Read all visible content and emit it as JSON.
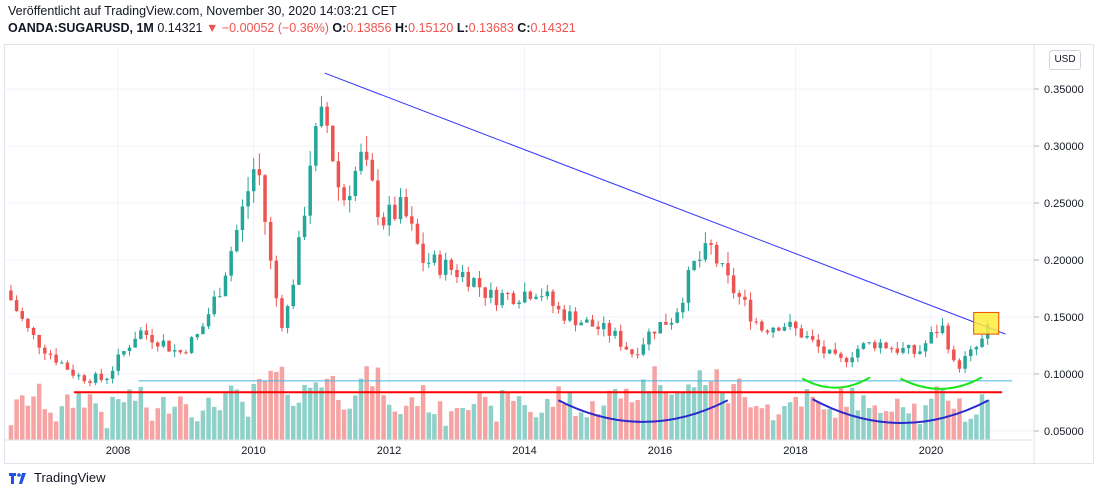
{
  "header": {
    "published_line": "Veröffentlicht auf TradingView.com, November 30, 2020 14:03:21 CET",
    "symbol": "OANDA:SUGARUSD, 1M",
    "last": "0.14321",
    "change": "−0.00052 (−0.36%)",
    "o_label": "O:",
    "o_value": "0.13856",
    "h_label": "H:",
    "h_value": "0.15120",
    "l_label": "L:",
    "l_value": "0.13683",
    "c_label": "C:",
    "c_value": "0.14321"
  },
  "axis_badge": "USD",
  "footer": {
    "brand": "TradingView"
  },
  "colors": {
    "up": "#26a69a",
    "down": "#ef5350",
    "volume_up": "#8fd1c9",
    "volume_down": "#f5a3a3",
    "trendline": "#3333ff",
    "support": "#ff0000",
    "volume_line": "#41b6e6",
    "arc_blue": "#2a2acd",
    "arc_green": "#19e619",
    "highlight_box": "#ffeb3b"
  },
  "chart_data": {
    "type": "candlestick",
    "title": "",
    "xlabel": "",
    "ylabel": "",
    "ylim": [
      0.045,
      0.38
    ],
    "x_ticks": [
      "2008",
      "2010",
      "2012",
      "2014",
      "2016",
      "2018",
      "2020"
    ],
    "y_ticks": [
      "0.35000",
      "0.30000",
      "0.25000",
      "0.20000",
      "0.15000",
      "0.10000",
      "0.05000"
    ],
    "y_tick_values": [
      0.35,
      0.3,
      0.25,
      0.2,
      0.15,
      0.1,
      0.05
    ],
    "x_range_years": [
      2006.4,
      2021.3
    ],
    "close_anchors": [
      [
        2006.42,
        0.165
      ],
      [
        2006.7,
        0.135
      ],
      [
        2007.0,
        0.118
      ],
      [
        2007.4,
        0.098
      ],
      [
        2007.8,
        0.095
      ],
      [
        2008.0,
        0.112
      ],
      [
        2008.3,
        0.138
      ],
      [
        2008.6,
        0.13
      ],
      [
        2008.9,
        0.118
      ],
      [
        2009.2,
        0.135
      ],
      [
        2009.5,
        0.175
      ],
      [
        2009.8,
        0.235
      ],
      [
        2010.05,
        0.29
      ],
      [
        2010.3,
        0.175
      ],
      [
        2010.45,
        0.14
      ],
      [
        2010.7,
        0.22
      ],
      [
        2010.85,
        0.295
      ],
      [
        2011.05,
        0.33
      ],
      [
        2011.3,
        0.25
      ],
      [
        2011.6,
        0.29
      ],
      [
        2011.9,
        0.235
      ],
      [
        2012.2,
        0.245
      ],
      [
        2012.5,
        0.2
      ],
      [
        2012.8,
        0.195
      ],
      [
        2013.2,
        0.185
      ],
      [
        2013.5,
        0.168
      ],
      [
        2013.9,
        0.17
      ],
      [
        2014.2,
        0.175
      ],
      [
        2014.5,
        0.155
      ],
      [
        2014.9,
        0.145
      ],
      [
        2015.3,
        0.135
      ],
      [
        2015.6,
        0.118
      ],
      [
        2015.9,
        0.14
      ],
      [
        2016.2,
        0.15
      ],
      [
        2016.5,
        0.195
      ],
      [
        2016.75,
        0.21
      ],
      [
        2016.95,
        0.185
      ],
      [
        2017.25,
        0.16
      ],
      [
        2017.5,
        0.14
      ],
      [
        2017.8,
        0.145
      ],
      [
        2018.1,
        0.135
      ],
      [
        2018.4,
        0.12
      ],
      [
        2018.65,
        0.11
      ],
      [
        2018.9,
        0.122
      ],
      [
        2019.2,
        0.128
      ],
      [
        2019.5,
        0.122
      ],
      [
        2019.8,
        0.118
      ],
      [
        2020.1,
        0.14
      ],
      [
        2020.2,
        0.14
      ],
      [
        2020.35,
        0.105
      ],
      [
        2020.55,
        0.115
      ],
      [
        2020.75,
        0.128
      ],
      [
        2020.88,
        0.143
      ]
    ],
    "annotations": {
      "trendline": {
        "from": [
          2011.05,
          0.364
        ],
        "to": [
          2021.1,
          0.135
        ]
      },
      "support_line": {
        "from": [
          2007.35,
          0.084
        ],
        "to": [
          2021.05,
          0.084
        ]
      },
      "volume_level_line": {
        "from": [
          2008.3,
          0.094
        ],
        "to": [
          2021.2,
          0.094
        ]
      },
      "highlight_box": {
        "x": [
          2020.63,
          2021.0
        ],
        "y": [
          0.135,
          0.154
        ]
      },
      "blue_arcs": [
        {
          "from": [
            2014.5,
            0.077
          ],
          "to": [
            2017.0,
            0.077
          ],
          "depth": 0.058
        },
        {
          "from": [
            2018.25,
            0.078
          ],
          "to": [
            2020.85,
            0.077
          ],
          "depth": 0.057
        }
      ],
      "green_arcs": [
        {
          "from": [
            2018.1,
            0.096
          ],
          "to": [
            2019.1,
            0.097
          ],
          "depth": 0.088
        },
        {
          "from": [
            2019.55,
            0.096
          ],
          "to": [
            2020.75,
            0.097
          ],
          "depth": 0.087
        }
      ]
    }
  }
}
